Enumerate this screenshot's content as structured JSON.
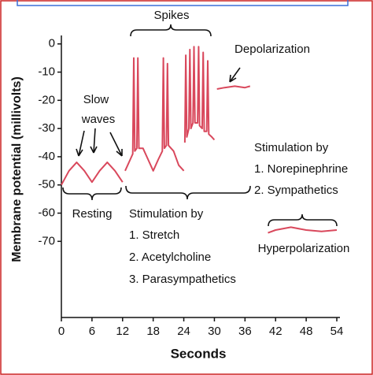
{
  "chart_data": {
    "type": "line",
    "y_label": "Membrane potential (millivolts)",
    "x_label": "Seconds",
    "xlim": [
      0,
      54
    ],
    "xticks": [
      0,
      6,
      12,
      18,
      24,
      30,
      36,
      42,
      48,
      54
    ],
    "ylim": [
      -97,
      3
    ],
    "yticks": [
      0,
      -10,
      -20,
      -30,
      -40,
      -50,
      -60,
      -70
    ],
    "grid": false,
    "annotations": [
      "Spikes",
      "Depolarization",
      "Slow",
      "waves",
      "Resting",
      "Stimulation by",
      "1. Stretch",
      "2. Acetylcholine",
      "3. Parasympathetics",
      "Stimulation by",
      "1. Norepinephrine",
      "2. Sympathetics",
      "Hyperpolarization"
    ],
    "series": [
      {
        "color": "#d9485c",
        "x": [
          0,
          1.5,
          3,
          4.5,
          6,
          7.5,
          9,
          10.5,
          12
        ],
        "values": [
          -50,
          -45,
          -42,
          -45,
          -49,
          -45,
          -42,
          -45,
          -49
        ]
      },
      {
        "color": "#d9485c",
        "x": [
          12.5,
          13.5,
          14,
          14.2,
          14.4,
          14.8,
          15,
          15.2,
          16,
          17,
          18,
          19,
          19.8,
          20,
          20.2,
          20.6,
          20.8,
          21,
          22,
          23,
          24
        ],
        "values": [
          -45,
          -41,
          -39,
          -5,
          -38,
          -37,
          -5,
          -37,
          -37,
          -41,
          -45,
          -41,
          -38,
          -5,
          -37,
          -36,
          -7,
          -36,
          -38,
          -43,
          -45
        ]
      },
      {
        "color": "#d9485c",
        "x": [
          24.2,
          24.4,
          24.6,
          25,
          25.2,
          25.4,
          25.8,
          26,
          26.2,
          26.7,
          26.9,
          27.1,
          27.6,
          27.8,
          28,
          28.5,
          28.7,
          28.9,
          29.5,
          30
        ],
        "values": [
          -35,
          -4,
          -33,
          -30,
          -2,
          -30,
          -28,
          -1,
          -28,
          -28,
          -1,
          -29,
          -30,
          -3,
          -31,
          -31,
          -6,
          -32,
          -33,
          -34
        ]
      },
      {
        "color": "#d9485c",
        "x": [
          30.5,
          32,
          34,
          36,
          37
        ],
        "values": [
          -16,
          -15.5,
          -15,
          -15.5,
          -15
        ]
      },
      {
        "color": "#d9485c",
        "x": [
          40.5,
          42,
          45,
          48,
          51,
          54
        ],
        "values": [
          -67,
          -66,
          -65,
          -66,
          -66.5,
          -66
        ]
      }
    ]
  }
}
